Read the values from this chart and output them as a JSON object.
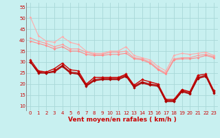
{
  "x": [
    0,
    1,
    2,
    3,
    4,
    5,
    6,
    7,
    8,
    9,
    10,
    11,
    12,
    13,
    14,
    15,
    16,
    17,
    18,
    19,
    20,
    21,
    22,
    23
  ],
  "series": [
    {
      "y": [
        50.5,
        42,
        39.5,
        39,
        41.5,
        39,
        38,
        35,
        34,
        34,
        35,
        35,
        37,
        33,
        32,
        31,
        28,
        26,
        33,
        34,
        33.5,
        34,
        34.5,
        33
      ],
      "color": "#ffaaaa",
      "marker": "D",
      "markersize": 1.8,
      "lw": 0.8
    },
    {
      "y": [
        41,
        39.5,
        38.5,
        37,
        38,
        36,
        36,
        34.5,
        33.5,
        33.5,
        34.5,
        34.5,
        35,
        32,
        31.5,
        30,
        27,
        25,
        31.5,
        32,
        32,
        33,
        33.5,
        32.5
      ],
      "color": "#ff9999",
      "marker": "D",
      "markersize": 1.8,
      "lw": 0.8
    },
    {
      "y": [
        39.5,
        38.5,
        37.5,
        36,
        37,
        35,
        35,
        33.5,
        33,
        33,
        33.5,
        33.5,
        34,
        31.5,
        31,
        29.5,
        26.5,
        24.5,
        31,
        31.5,
        31.5,
        32,
        33,
        32
      ],
      "color": "#ff8888",
      "marker": "D",
      "markersize": 1.8,
      "lw": 0.8
    },
    {
      "y": [
        31,
        26,
        25.5,
        27,
        29.5,
        26.5,
        26,
        20,
        23,
        23,
        23,
        23,
        24.5,
        19.5,
        22,
        21,
        20,
        13,
        13,
        17.5,
        16.5,
        24,
        24.5,
        17
      ],
      "color": "#cc0000",
      "marker": "D",
      "markersize": 2.2,
      "lw": 1.0
    },
    {
      "y": [
        30,
        25.5,
        25,
        26,
        28.5,
        25.5,
        25,
        19.5,
        22,
        22.5,
        22.5,
        22.5,
        24,
        19,
        21,
        20,
        19.5,
        12.5,
        12.5,
        17,
        16,
        23,
        24,
        16.5
      ],
      "color": "#bb0000",
      "marker": "D",
      "markersize": 2.2,
      "lw": 1.0
    },
    {
      "y": [
        30,
        25,
        25,
        25.5,
        28,
        25,
        24.5,
        19,
        21.5,
        22,
        22,
        22,
        23.5,
        18.5,
        20.5,
        19.5,
        19,
        12,
        12,
        16.5,
        15.5,
        22.5,
        23.5,
        16
      ],
      "color": "#aa0000",
      "marker": "D",
      "markersize": 2.2,
      "lw": 1.0
    }
  ],
  "xlabel": "Vent moyen/en rafales ( km/h )",
  "ylim": [
    8,
    57
  ],
  "yticks": [
    10,
    15,
    20,
    25,
    30,
    35,
    40,
    45,
    50,
    55
  ],
  "xlim": [
    -0.5,
    23.5
  ],
  "xticks": [
    0,
    1,
    2,
    3,
    4,
    5,
    6,
    7,
    8,
    9,
    10,
    11,
    12,
    13,
    14,
    15,
    16,
    17,
    18,
    19,
    20,
    21,
    22,
    23
  ],
  "bg_color": "#c8f0f0",
  "grid_color": "#a8d8d8",
  "tick_color": "#cc0000",
  "label_color": "#cc0000",
  "xlabel_fontsize": 6.5,
  "tick_fontsize": 5.0
}
